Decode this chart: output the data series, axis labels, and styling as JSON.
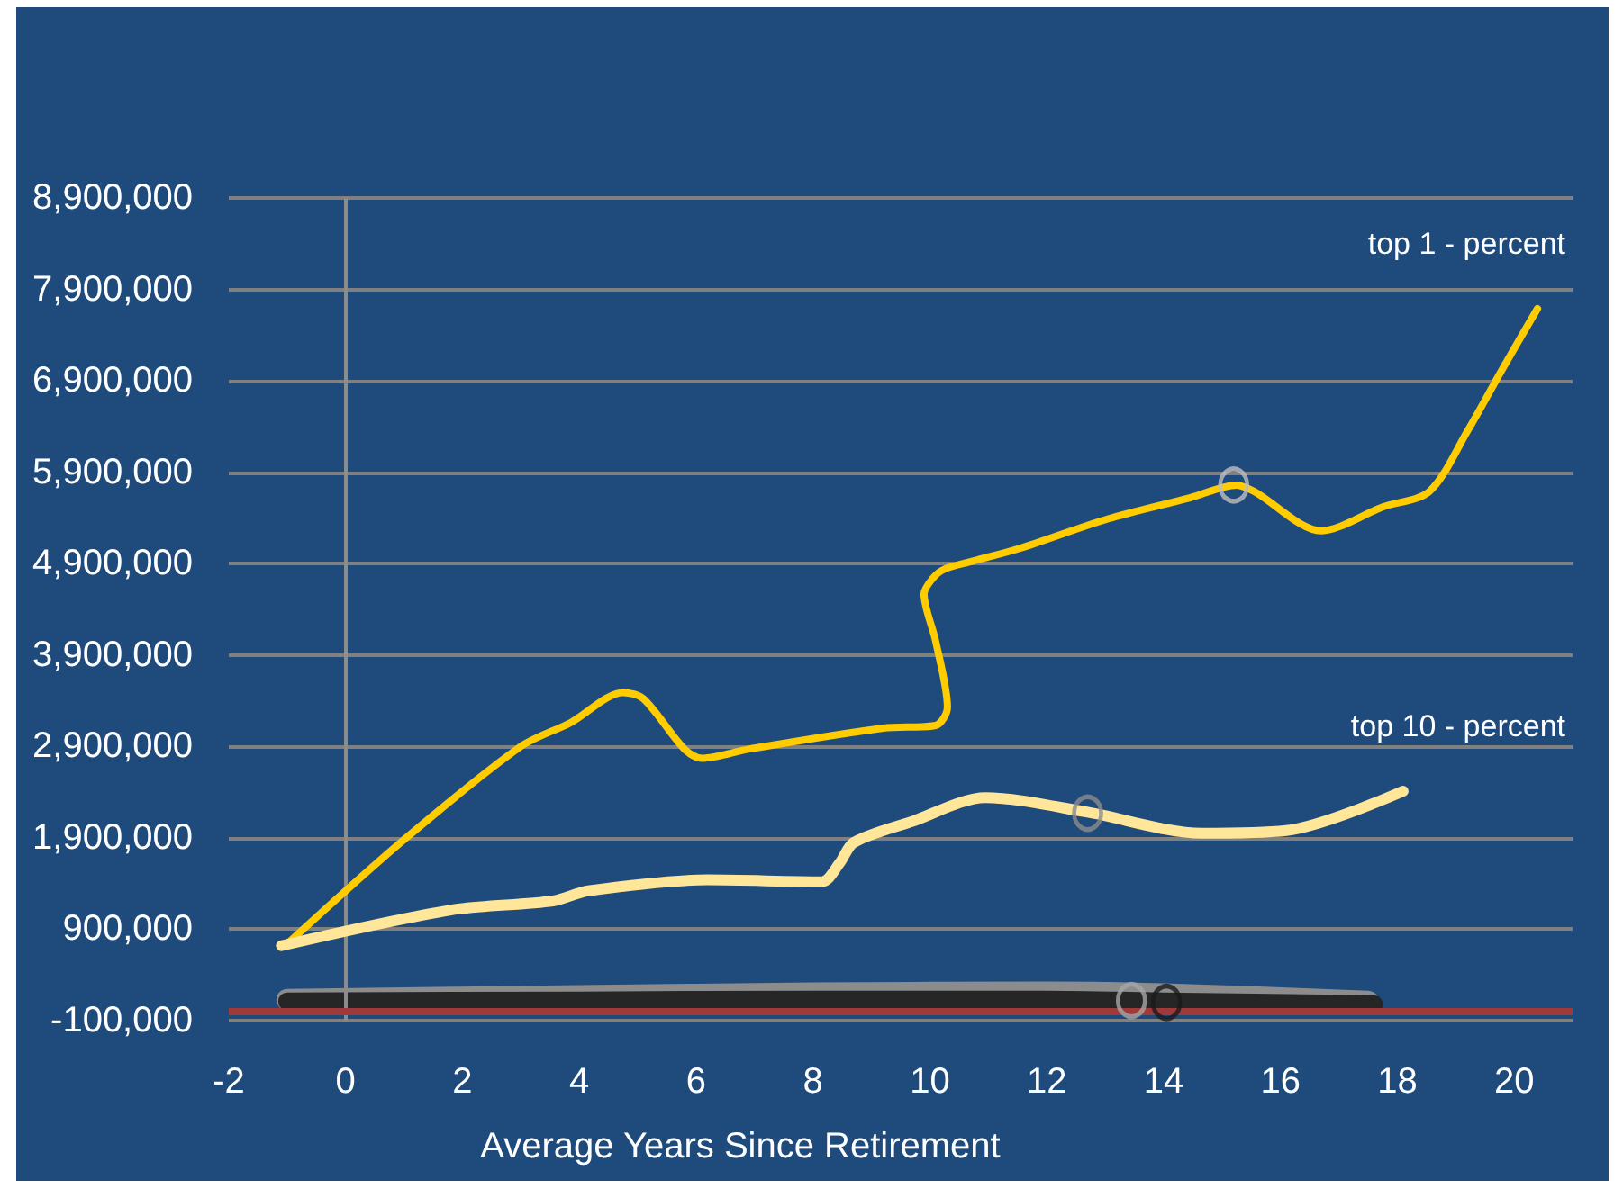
{
  "chart_data": {
    "type": "line",
    "xlabel": "Average Years Since Retirement",
    "xlim": [
      -2,
      21
    ],
    "xticks": [
      -2,
      0,
      2,
      4,
      6,
      8,
      10,
      12,
      14,
      16,
      18,
      20
    ],
    "ylim": [
      -100000,
      8900000
    ],
    "yticks": [
      {
        "value": -100000,
        "label": "-100,000"
      },
      {
        "value": 900000,
        "label": "900,000"
      },
      {
        "value": 1900000,
        "label": "1,900,000"
      },
      {
        "value": 2900000,
        "label": "2,900,000"
      },
      {
        "value": 3900000,
        "label": "3,900,000"
      },
      {
        "value": 4900000,
        "label": "4,900,000"
      },
      {
        "value": 5900000,
        "label": "5,900,000"
      },
      {
        "value": 6900000,
        "label": "6,900,000"
      },
      {
        "value": 7900000,
        "label": "7,900,000"
      },
      {
        "value": 8900000,
        "label": "8,900,000"
      }
    ],
    "grid": "y",
    "line_style": "solid",
    "series": [
      {
        "name": "top 1 - percent",
        "color": "#ffcc00",
        "x": [
          -0.95,
          1,
          3,
          3.85,
          4.75,
          5.1,
          5.8,
          6.1,
          6.9,
          9.2,
          10.1,
          10.3,
          10.1,
          9.9,
          10.05,
          10.25,
          10.75,
          11.55,
          13,
          14.45,
          15.25,
          15.55,
          16.7,
          17.75,
          18.55,
          19.2,
          19.8,
          20.4
        ],
        "values": [
          770000,
          1880000,
          2900000,
          3160000,
          3490000,
          3420000,
          2870000,
          2770000,
          2870000,
          3100000,
          3130000,
          3330000,
          4050000,
          4570000,
          4740000,
          4840000,
          4930000,
          5070000,
          5380000,
          5620000,
          5760000,
          5690000,
          5260000,
          5520000,
          5690000,
          6350000,
          7030000,
          7690000
        ]
      },
      {
        "name": "top 10 - percent",
        "color": "#ffe699",
        "x": [
          -1.1,
          1.8,
          3.55,
          4.15,
          6.2,
          8.15,
          8.45,
          8.7,
          9.7,
          10.95,
          12.7,
          14.65,
          16.1,
          18.1
        ],
        "values": [
          720000,
          1110000,
          1210000,
          1320000,
          1440000,
          1420000,
          1620000,
          1850000,
          2080000,
          2340000,
          2180000,
          1950000,
          1980000,
          2410000
        ]
      },
      {
        "color": "#8c8c8c",
        "x": [
          -1,
          4,
          8,
          12,
          14,
          17.5
        ],
        "values": [
          130000,
          170000,
          200000,
          210000,
          190000,
          110000
        ]
      },
      {
        "color": "#262626",
        "x": [
          -1,
          4,
          8,
          12,
          14,
          17.6
        ],
        "values": [
          110000,
          120000,
          130000,
          130000,
          110000,
          80000
        ]
      },
      {
        "type": "scatter",
        "marker": "circle",
        "color": "#bfbfbf",
        "x": [
          15.2
        ],
        "values": [
          5760000
        ]
      },
      {
        "type": "scatter",
        "marker": "circle",
        "color": "#8c8c8c",
        "x": [
          12.7
        ],
        "values": [
          2170000
        ]
      },
      {
        "type": "scatter",
        "marker": "circle",
        "color": "#a6a6a6",
        "x": [
          13.45
        ],
        "values": [
          120000
        ]
      },
      {
        "type": "scatter",
        "marker": "circle",
        "color": "#1a1a1a",
        "x": [
          14.05
        ],
        "values": [
          100000
        ]
      }
    ],
    "ref_lines": [
      {
        "axis": "x",
        "value": 0,
        "color": "#8c8c8c"
      },
      {
        "axis": "y",
        "value": 0,
        "color": "#a03a3a"
      }
    ]
  }
}
